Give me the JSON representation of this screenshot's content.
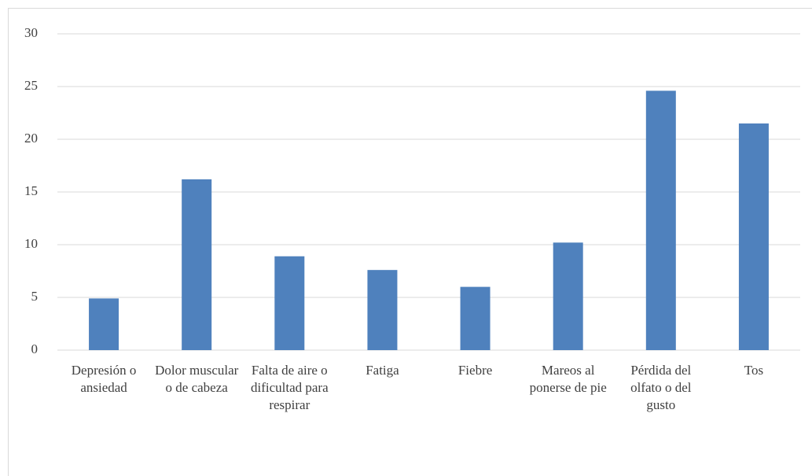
{
  "chart_data": {
    "type": "bar",
    "categories": [
      "Depresión o ansiedad",
      "Dolor muscular o de cabeza",
      "Falta de aire o dificultad para respirar",
      "Fatiga",
      "Fiebre",
      "Mareos al ponerse de pie",
      "Pérdida del olfato o del gusto",
      "Tos"
    ],
    "values": [
      4.9,
      16.2,
      8.9,
      7.6,
      6.0,
      10.2,
      24.6,
      21.5
    ],
    "color": "#4f81bd",
    "ylim": [
      0,
      30
    ],
    "yticks": [
      0,
      5,
      10,
      15,
      20,
      25,
      30
    ],
    "grid": true
  }
}
